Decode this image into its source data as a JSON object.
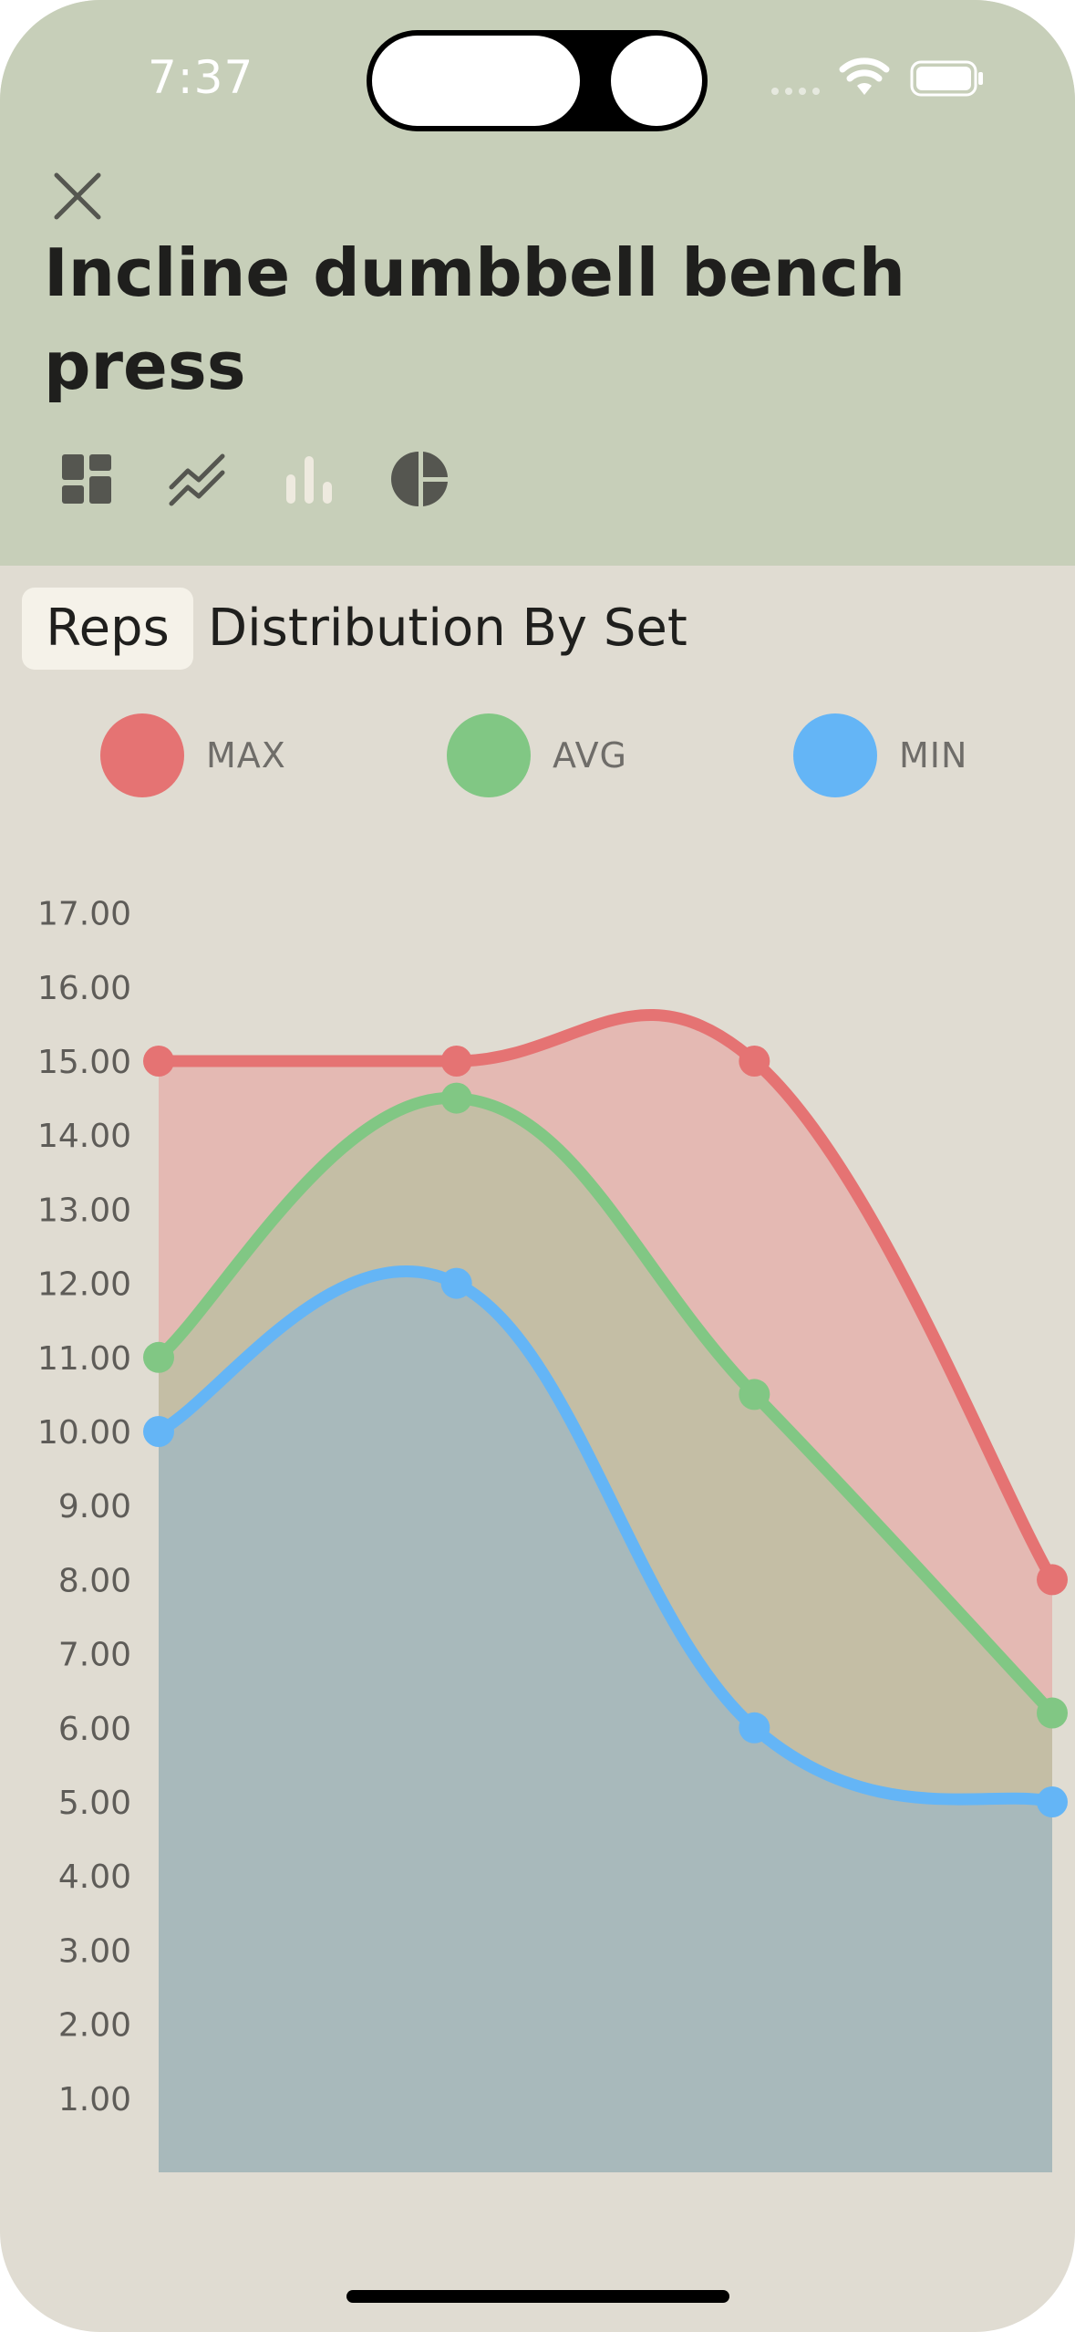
{
  "status_bar": {
    "time": "7:37",
    "wifi_icon": "wifi-icon",
    "battery_icon": "battery-icon"
  },
  "header": {
    "close_icon": "close-icon",
    "title": "Incline dumbbell bench press",
    "view_icons": [
      "dashboard-icon",
      "line-chart-icon",
      "bar-chart-icon",
      "pie-chart-icon"
    ],
    "active_view_color": "#555650",
    "inactive_view_color": "#eeeadf",
    "background": "#c7cfb9"
  },
  "tabs": {
    "active": "Reps",
    "label": "Distribution By Set"
  },
  "chart_data": {
    "type": "area",
    "x": [
      1,
      2,
      3,
      4
    ],
    "ylim": [
      0,
      17
    ],
    "y_ticks": [
      "1.00",
      "2.00",
      "3.00",
      "4.00",
      "5.00",
      "6.00",
      "7.00",
      "8.00",
      "9.00",
      "10.00",
      "11.00",
      "12.00",
      "13.00",
      "14.00",
      "15.00",
      "16.00",
      "17.00"
    ],
    "legend_position": "top",
    "grid": false,
    "series": [
      {
        "name": "MAX",
        "values": [
          15,
          15,
          15,
          8
        ],
        "color": "#e57373",
        "fill": "#e4b9b3"
      },
      {
        "name": "AVG",
        "values": [
          11,
          14.5,
          10.5,
          6.2
        ],
        "color": "#81c784",
        "fill": "#c4bea5"
      },
      {
        "name": "MIN",
        "values": [
          10,
          12,
          6,
          5
        ],
        "color": "#64b5f6",
        "fill": "#a8b9bb"
      }
    ]
  }
}
